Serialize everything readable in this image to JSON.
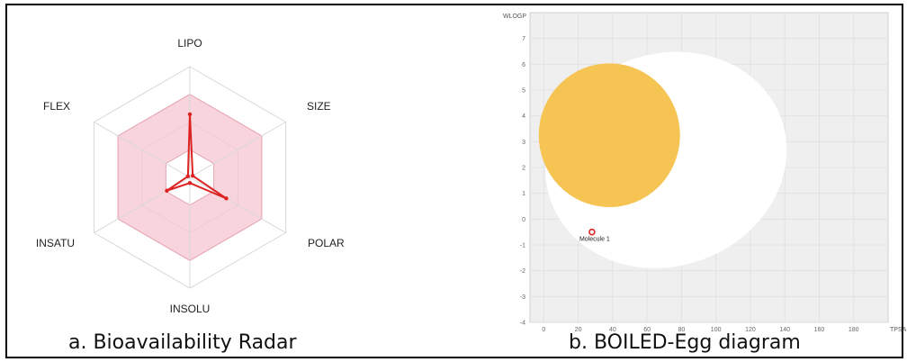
{
  "captions": {
    "a": "a. Bioavailability Radar",
    "b": "b. BOILED-Egg diagram"
  },
  "chart_data": [
    {
      "type": "radar",
      "axes": [
        "LIPO",
        "SIZE",
        "POLAR",
        "INSOLU",
        "INSATU",
        "FLEX"
      ],
      "levels": 4,
      "optimal_band": [
        0.25,
        0.75
      ],
      "values": [
        0.57,
        0.03,
        0.38,
        0.05,
        0.24,
        0.02
      ],
      "colors": {
        "band": "#f5c6d0",
        "band_stroke": "#e8a0b0",
        "series": "#dd2222",
        "grid": "#d8d8d8"
      }
    },
    {
      "type": "scatter",
      "xlabel": "TPSA",
      "ylabel": "WLOGP",
      "xlim": [
        -8,
        200
      ],
      "ylim": [
        -4,
        8
      ],
      "xticks": [
        0,
        20,
        40,
        60,
        80,
        100,
        120,
        140,
        160,
        180
      ],
      "yticks": [
        -4,
        -3,
        -2,
        -1,
        0,
        1,
        2,
        3,
        4,
        5,
        6,
        7
      ],
      "white_region": {
        "cx": 71.05,
        "cy": 2.29,
        "rx": 142.08,
        "ry": 8.22,
        "rotation_deg": -160.2
      },
      "yolk_region": {
        "cx": 38.12,
        "cy": 3.25,
        "rx": 82.06,
        "ry": 5.57,
        "rotation_deg": -1.03
      },
      "points": [
        {
          "label": "Molecule 1",
          "x": 28,
          "y": -0.5
        }
      ],
      "colors": {
        "background": "#efefef",
        "white": "#ffffff",
        "yolk": "#f5c453",
        "point": "#dd2222"
      }
    }
  ]
}
